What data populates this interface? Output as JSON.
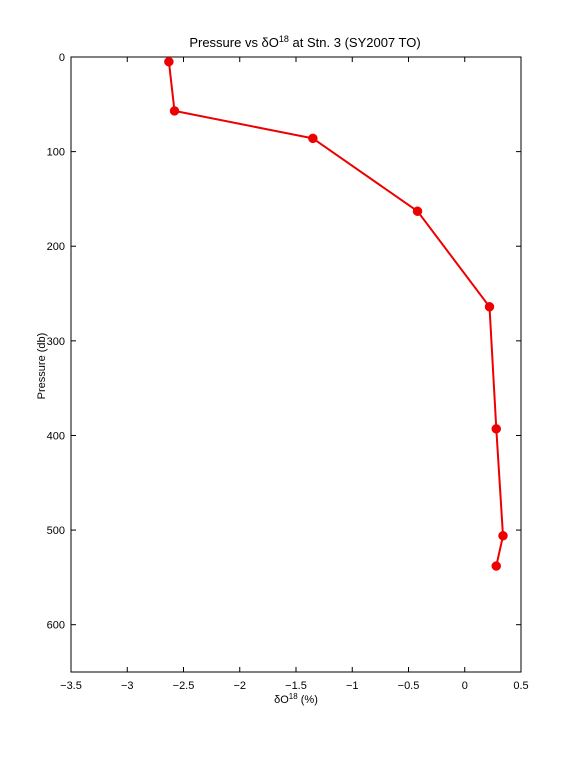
{
  "chart_data": {
    "type": "line",
    "title": {
      "prefix": "Pressure vs δO",
      "sup": "18",
      "suffix": " at Stn. 3 (SY2007 TO)"
    },
    "xlabel": {
      "prefix": "δO",
      "sup": "18",
      "suffix": " (%)"
    },
    "ylabel": "Pressure (db)",
    "xlim": [
      -3.5,
      0.5
    ],
    "ylim": [
      0,
      650
    ],
    "y_reversed": true,
    "grid": false,
    "xticks": [
      -3.5,
      -3,
      -2.5,
      -2,
      -1.5,
      -1,
      -0.5,
      0,
      0.5
    ],
    "xtick_labels": [
      "−3.5",
      "−3",
      "−2.5",
      "−2",
      "−1.5",
      "−1",
      "−0.5",
      "0",
      "0.5"
    ],
    "yticks": [
      0,
      100,
      200,
      300,
      400,
      500,
      600
    ],
    "ytick_labels": [
      "0",
      "100",
      "200",
      "300",
      "400",
      "500",
      "600"
    ],
    "series": [
      {
        "color": "#ee0000",
        "marker": "circle",
        "x": [
          -2.63,
          -2.58,
          -1.35,
          -0.42,
          0.22,
          0.28,
          0.34,
          0.28
        ],
        "y": [
          5,
          57,
          86,
          163,
          264,
          393,
          506,
          538
        ]
      }
    ]
  }
}
